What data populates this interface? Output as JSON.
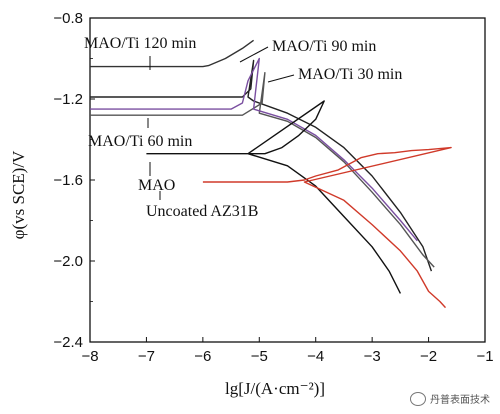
{
  "chart_data": {
    "type": "line",
    "xlabel": "lg[J/(A·cm⁻²)]",
    "ylabel": "φ(vs SCE)/V",
    "xlim": [
      -8,
      -1
    ],
    "ylim": [
      -2.4,
      -0.8
    ],
    "xticks": [
      -8,
      -7,
      -6,
      -5,
      -4,
      -3,
      -2,
      -1
    ],
    "yticks": [
      -0.8,
      -1.2,
      -1.6,
      -2.0,
      -2.4
    ],
    "xtick_labels": [
      "−8",
      "−7",
      "−6",
      "−5",
      "−4",
      "−3",
      "−2",
      "−1"
    ],
    "ytick_labels": [
      "−0.8",
      "−1.2",
      "−1.6",
      "−2.0",
      "−2.4"
    ],
    "series": [
      {
        "name": "MAO/Ti 120 min",
        "color": "#333333",
        "x": [
          -8.0,
          -7.0,
          -6.5,
          -6.2,
          -6.05,
          -6.0,
          -5.9,
          -5.6,
          -5.3,
          -5.1
        ],
        "y": [
          -1.04,
          -1.04,
          -1.04,
          -1.04,
          -1.04,
          -1.04,
          -1.035,
          -1.0,
          -0.95,
          -0.91
        ]
      },
      {
        "name": "MAO/Ti 90 min",
        "color": "#222222",
        "x": [
          -8.0,
          -7.0,
          -6.0,
          -5.3,
          -5.15,
          -5.1,
          -5.2,
          -5.1,
          -4.5,
          -4.0,
          -3.5,
          -3.0,
          -2.5,
          -2.1,
          -1.95
        ],
        "y": [
          -1.19,
          -1.19,
          -1.19,
          -1.19,
          -1.15,
          -1.01,
          -1.19,
          -1.21,
          -1.27,
          -1.34,
          -1.44,
          -1.58,
          -1.76,
          -1.93,
          -2.05
        ]
      },
      {
        "name": "MAO/Ti 30 min",
        "color": "#555555",
        "x": [
          -8.0,
          -7.0,
          -6.0,
          -5.3,
          -4.95,
          -4.9,
          -5.0,
          -4.5,
          -4.0,
          -3.5,
          -3.0,
          -2.5,
          -2.1,
          -1.9
        ],
        "y": [
          -1.28,
          -1.28,
          -1.28,
          -1.28,
          -1.22,
          -1.07,
          -1.27,
          -1.31,
          -1.39,
          -1.51,
          -1.66,
          -1.82,
          -1.97,
          -2.03
        ]
      },
      {
        "name": "MAO/Ti 60 min",
        "color": "#7a4fa0",
        "x": [
          -8.0,
          -7.0,
          -6.0,
          -5.5,
          -5.3,
          -5.2,
          -5.0,
          -5.1,
          -4.5,
          -4.0,
          -3.5,
          -3.0,
          -2.5,
          -2.2
        ],
        "y": [
          -1.25,
          -1.25,
          -1.25,
          -1.25,
          -1.22,
          -1.11,
          -1.0,
          -1.25,
          -1.3,
          -1.38,
          -1.5,
          -1.64,
          -1.8,
          -1.9
        ]
      },
      {
        "name": "MAO",
        "color": "#111111",
        "x": [
          -7.0,
          -6.5,
          -6.0,
          -5.5,
          -5.2,
          -4.9,
          -4.6,
          -4.3,
          -4.0,
          -3.85,
          -5.2,
          -4.5,
          -4.0,
          -3.5,
          -3.0,
          -2.7,
          -2.5
        ],
        "y": [
          -1.47,
          -1.47,
          -1.47,
          -1.47,
          -1.47,
          -1.47,
          -1.44,
          -1.38,
          -1.3,
          -1.21,
          -1.47,
          -1.53,
          -1.63,
          -1.78,
          -1.93,
          -2.05,
          -2.16
        ]
      },
      {
        "name": "Uncoated AZ31B",
        "color": "#d03a2a",
        "x": [
          -6.0,
          -5.5,
          -5.0,
          -4.5,
          -4.2,
          -4.0,
          -3.6,
          -3.2,
          -2.9,
          -2.6,
          -2.3,
          -2.0,
          -1.6,
          -4.2,
          -3.5,
          -3.0,
          -2.5,
          -2.2,
          -2.0,
          -1.8,
          -1.7
        ],
        "y": [
          -1.61,
          -1.61,
          -1.61,
          -1.61,
          -1.6,
          -1.58,
          -1.55,
          -1.49,
          -1.47,
          -1.465,
          -1.455,
          -1.45,
          -1.44,
          -1.61,
          -1.7,
          -1.82,
          -1.95,
          -2.05,
          -2.15,
          -2.2,
          -2.23
        ]
      }
    ],
    "annotations": [
      {
        "text": "MAO/Ti 120 min"
      },
      {
        "text": "MAO/Ti 90 min"
      },
      {
        "text": "MAO/Ti 30 min"
      },
      {
        "text": "MAO/Ti 60 min"
      },
      {
        "text": "MAO"
      },
      {
        "text": "Uncoated AZ31B"
      }
    ],
    "grid": false,
    "legend": "none"
  },
  "watermark": {
    "text": "丹普表面技术"
  }
}
